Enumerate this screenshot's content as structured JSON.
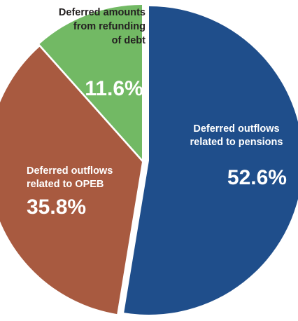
{
  "chart_data": {
    "type": "pie",
    "slices": [
      {
        "label_lines": [
          "Deferred outflows",
          "related to pensions"
        ],
        "value": 52.6,
        "value_label": "52.6%",
        "color": "#1f4e8b"
      },
      {
        "label_lines": [
          "Deferred outflows",
          "related to OPEB"
        ],
        "value": 35.8,
        "value_label": "35.8%",
        "color": "#a85a40"
      },
      {
        "label_lines": [
          "Deferred amounts",
          "from refunding",
          "of debt"
        ],
        "value": 11.6,
        "value_label": "11.6%",
        "color": "#72b964"
      }
    ]
  }
}
